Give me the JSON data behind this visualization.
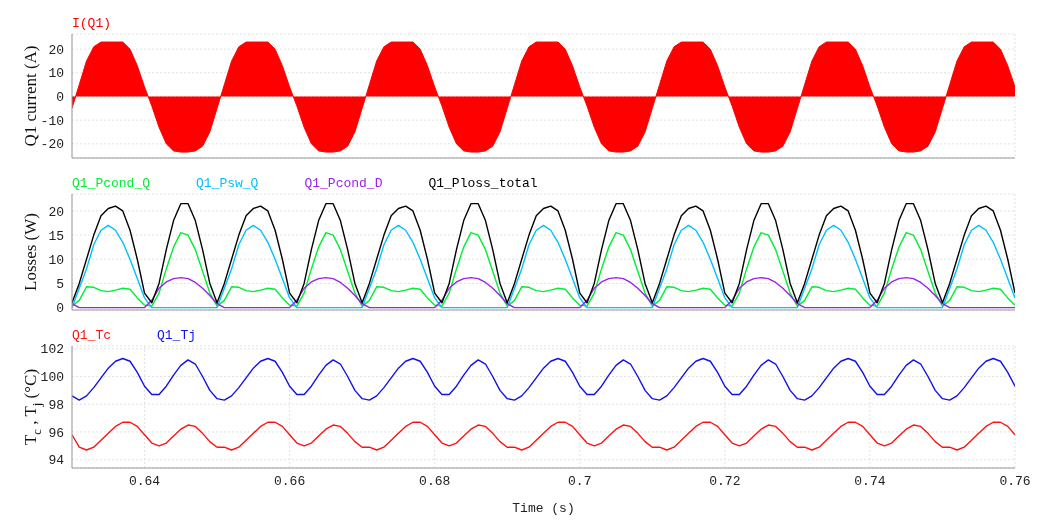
{
  "chart_data": [
    {
      "type": "area",
      "ylabel": "Q1 current (A)",
      "ylim": [
        -26,
        26.4
      ],
      "yticks": [
        -20,
        -10,
        0,
        10,
        20
      ],
      "xlim": [
        0.63,
        0.76
      ],
      "xticks": [
        0.64,
        0.66,
        0.68,
        0.7,
        0.72,
        0.74,
        0.76
      ],
      "tick_labels": "y",
      "grid": true,
      "legend": "top left",
      "x": [
        0.63,
        0.631,
        0.632,
        0.633,
        0.634,
        0.635,
        0.636,
        0.637,
        0.638,
        0.639,
        0.64,
        0.641,
        0.642,
        0.643,
        0.644,
        0.645,
        0.646,
        0.647,
        0.648,
        0.649,
        0.65,
        0.651,
        0.652,
        0.653,
        0.654,
        0.655,
        0.656,
        0.657,
        0.658,
        0.659,
        0.66,
        0.661,
        0.662,
        0.663,
        0.664,
        0.665,
        0.666,
        0.667,
        0.668,
        0.669,
        0.67,
        0.671,
        0.672,
        0.673,
        0.674,
        0.675,
        0.676,
        0.677,
        0.678,
        0.679,
        0.68,
        0.681,
        0.682,
        0.683,
        0.684,
        0.685,
        0.686,
        0.687,
        0.688,
        0.689,
        0.69,
        0.691,
        0.692,
        0.693,
        0.694,
        0.695,
        0.696,
        0.697,
        0.698,
        0.699,
        0.7,
        0.701,
        0.702,
        0.703,
        0.704,
        0.705,
        0.706,
        0.707,
        0.708,
        0.709,
        0.71,
        0.711,
        0.712,
        0.713,
        0.714,
        0.715,
        0.716,
        0.717,
        0.718,
        0.719,
        0.72,
        0.721,
        0.722,
        0.723,
        0.724,
        0.725,
        0.726,
        0.727,
        0.728,
        0.729,
        0.73,
        0.731,
        0.732,
        0.733,
        0.734,
        0.735,
        0.736,
        0.737,
        0.738,
        0.739,
        0.74,
        0.741,
        0.742,
        0.743,
        0.744,
        0.745,
        0.746,
        0.747,
        0.748,
        0.749,
        0.75,
        0.751,
        0.752,
        0.753,
        0.754,
        0.755,
        0.756,
        0.757,
        0.758,
        0.759,
        0.76
      ],
      "series": [
        {
          "name": "I(Q1)",
          "color": "#ff0000",
          "values": [
            -5,
            5,
            15,
            21,
            23,
            23,
            23,
            23,
            20,
            13,
            4,
            -4,
            -13,
            -20,
            -23,
            -23.5,
            -23.5,
            -23,
            -21,
            -15,
            -5,
            5,
            15,
            21,
            23,
            23,
            23,
            23,
            20,
            13,
            4,
            -4,
            -13,
            -20,
            -23,
            -23.5,
            -23.5,
            -23,
            -21,
            -15,
            -5,
            5,
            15,
            21,
            23,
            23,
            23,
            23,
            20,
            13,
            4,
            -4,
            -13,
            -20,
            -23,
            -23.5,
            -23.5,
            -23,
            -21,
            -15,
            -5,
            5,
            15,
            21,
            23,
            23,
            23,
            23,
            20,
            13,
            4,
            -4,
            -13,
            -20,
            -23,
            -23.5,
            -23.5,
            -23,
            -21,
            -15,
            -5,
            5,
            15,
            21,
            23,
            23,
            23,
            23,
            20,
            13,
            4,
            -4,
            -13,
            -20,
            -23,
            -23.5,
            -23.5,
            -23,
            -21,
            -15,
            -5,
            5,
            15,
            21,
            23,
            23,
            23,
            23,
            20,
            13,
            4,
            -4,
            -13,
            -20,
            -23,
            -23.5,
            -23.5,
            -23,
            -21,
            -15,
            -5,
            5,
            15,
            21,
            23,
            23,
            23,
            23,
            20,
            13,
            4
          ]
        }
      ]
    },
    {
      "type": "line",
      "ylabel": "Losses (W)",
      "ylim": [
        -0.5,
        23.5
      ],
      "yticks": [
        0,
        5,
        10,
        15,
        20
      ],
      "xlim": [
        0.63,
        0.76
      ],
      "xticks": [
        0.64,
        0.66,
        0.68,
        0.7,
        0.72,
        0.74,
        0.76
      ],
      "tick_labels": "y",
      "grid": true,
      "legend": "top left",
      "x": [
        0.63,
        0.631,
        0.632,
        0.633,
        0.634,
        0.635,
        0.636,
        0.637,
        0.638,
        0.639,
        0.64,
        0.641,
        0.642,
        0.643,
        0.644,
        0.645,
        0.646,
        0.647,
        0.648,
        0.649,
        0.65,
        0.651,
        0.652,
        0.653,
        0.654,
        0.655,
        0.656,
        0.657,
        0.658,
        0.659,
        0.66,
        0.661,
        0.662,
        0.663,
        0.664,
        0.665,
        0.666,
        0.667,
        0.668,
        0.669,
        0.67,
        0.671,
        0.672,
        0.673,
        0.674,
        0.675,
        0.676,
        0.677,
        0.678,
        0.679,
        0.68,
        0.681,
        0.682,
        0.683,
        0.684,
        0.685,
        0.686,
        0.687,
        0.688,
        0.689,
        0.69,
        0.691,
        0.692,
        0.693,
        0.694,
        0.695,
        0.696,
        0.697,
        0.698,
        0.699,
        0.7,
        0.701,
        0.702,
        0.703,
        0.704,
        0.705,
        0.706,
        0.707,
        0.708,
        0.709,
        0.71,
        0.711,
        0.712,
        0.713,
        0.714,
        0.715,
        0.716,
        0.717,
        0.718,
        0.719,
        0.72,
        0.721,
        0.722,
        0.723,
        0.724,
        0.725,
        0.726,
        0.727,
        0.728,
        0.729,
        0.73,
        0.731,
        0.732,
        0.733,
        0.734,
        0.735,
        0.736,
        0.737,
        0.738,
        0.739,
        0.74,
        0.741,
        0.742,
        0.743,
        0.744,
        0.745,
        0.746,
        0.747,
        0.748,
        0.749,
        0.75,
        0.751,
        0.752,
        0.753,
        0.754,
        0.755,
        0.756,
        0.757,
        0.758,
        0.759,
        0.76
      ],
      "series": [
        {
          "name": "Q1_Pcond_Q",
          "color": "#00ee33",
          "values": [
            0.3,
            1.5,
            4.3,
            4.2,
            3.5,
            3.3,
            3.6,
            4,
            3.8,
            2,
            0.5,
            0.3,
            3,
            8,
            12.5,
            15.5,
            15,
            12,
            7.5,
            3,
            0.3,
            1.5,
            4.3,
            4.2,
            3.5,
            3.3,
            3.6,
            4,
            3.8,
            2,
            0.5,
            0.3,
            3,
            8,
            12.5,
            15.5,
            15,
            12,
            7.5,
            3,
            0.3,
            1.5,
            4.3,
            4.2,
            3.5,
            3.3,
            3.6,
            4,
            3.8,
            2,
            0.5,
            0.3,
            3,
            8,
            12.5,
            15.5,
            15,
            12,
            7.5,
            3,
            0.3,
            1.5,
            4.3,
            4.2,
            3.5,
            3.3,
            3.6,
            4,
            3.8,
            2,
            0.5,
            0.3,
            3,
            8,
            12.5,
            15.5,
            15,
            12,
            7.5,
            3,
            0.3,
            1.5,
            4.3,
            4.2,
            3.5,
            3.3,
            3.6,
            4,
            3.8,
            2,
            0.5,
            0.3,
            3,
            8,
            12.5,
            15.5,
            15,
            12,
            7.5,
            3,
            0.3,
            1.5,
            4.3,
            4.2,
            3.5,
            3.3,
            3.6,
            4,
            3.8,
            2,
            0.5,
            0.3,
            3,
            8,
            12.5,
            15.5,
            15,
            12,
            7.5,
            3,
            0.3,
            1.5,
            4.3,
            4.2,
            3.5,
            3.3,
            3.6,
            4,
            3.8,
            2,
            0.5
          ]
        },
        {
          "name": "Q1_Psw_Q",
          "color": "#00bfff",
          "values": [
            0,
            4,
            8,
            13,
            16,
            17,
            16,
            13.5,
            10,
            6,
            2,
            0,
            0,
            0,
            0,
            0,
            0,
            0,
            0,
            0,
            0,
            4,
            8,
            13,
            16,
            17,
            16,
            13.5,
            10,
            6,
            2,
            0,
            0,
            0,
            0,
            0,
            0,
            0,
            0,
            0,
            0,
            4,
            8,
            13,
            16,
            17,
            16,
            13.5,
            10,
            6,
            2,
            0,
            0,
            0,
            0,
            0,
            0,
            0,
            0,
            0,
            0,
            4,
            8,
            13,
            16,
            17,
            16,
            13.5,
            10,
            6,
            2,
            0,
            0,
            0,
            0,
            0,
            0,
            0,
            0,
            0,
            0,
            4,
            8,
            13,
            16,
            17,
            16,
            13.5,
            10,
            6,
            2,
            0,
            0,
            0,
            0,
            0,
            0,
            0,
            0,
            0,
            0,
            4,
            8,
            13,
            16,
            17,
            16,
            13.5,
            10,
            6,
            2,
            0,
            0,
            0,
            0,
            0,
            0,
            0,
            0,
            0,
            0,
            4,
            8,
            13,
            16,
            17,
            16,
            13.5,
            10,
            6,
            2
          ]
        },
        {
          "name": "Q1_Pcond_D",
          "color": "#9922ee",
          "values": [
            0.8,
            0,
            0,
            0,
            0,
            0,
            0,
            0,
            0,
            0,
            0,
            1.5,
            4,
            5.3,
            6,
            6.2,
            6,
            5.2,
            4,
            2.5,
            0.8,
            0,
            0,
            0,
            0,
            0,
            0,
            0,
            0,
            0,
            0,
            1.5,
            4,
            5.3,
            6,
            6.2,
            6,
            5.2,
            4,
            2.5,
            0.8,
            0,
            0,
            0,
            0,
            0,
            0,
            0,
            0,
            0,
            0,
            1.5,
            4,
            5.3,
            6,
            6.2,
            6,
            5.2,
            4,
            2.5,
            0.8,
            0,
            0,
            0,
            0,
            0,
            0,
            0,
            0,
            0,
            0,
            1.5,
            4,
            5.3,
            6,
            6.2,
            6,
            5.2,
            4,
            2.5,
            0.8,
            0,
            0,
            0,
            0,
            0,
            0,
            0,
            0,
            0,
            0,
            1.5,
            4,
            5.3,
            6,
            6.2,
            6,
            5.2,
            4,
            2.5,
            0.8,
            0,
            0,
            0,
            0,
            0,
            0,
            0,
            0,
            0,
            0,
            1.5,
            4,
            5.3,
            6,
            6.2,
            6,
            5.2,
            4,
            2.5,
            0.8,
            0,
            0,
            0,
            0,
            0,
            0,
            0,
            0,
            0,
            0
          ]
        },
        {
          "name": "Q1_Ploss_total",
          "color": "#000000",
          "values": [
            1,
            5,
            10,
            15,
            19,
            20.5,
            21,
            20,
            16,
            10,
            3,
            1,
            5,
            12,
            18,
            21.5,
            21.5,
            18,
            12,
            5,
            1,
            5,
            10,
            15,
            19,
            20.5,
            21,
            20,
            16,
            10,
            3,
            1,
            5,
            12,
            18,
            21.5,
            21.5,
            18,
            12,
            5,
            1,
            5,
            10,
            15,
            19,
            20.5,
            21,
            20,
            16,
            10,
            3,
            1,
            5,
            12,
            18,
            21.5,
            21.5,
            18,
            12,
            5,
            1,
            5,
            10,
            15,
            19,
            20.5,
            21,
            20,
            16,
            10,
            3,
            1,
            5,
            12,
            18,
            21.5,
            21.5,
            18,
            12,
            5,
            1,
            5,
            10,
            15,
            19,
            20.5,
            21,
            20,
            16,
            10,
            3,
            1,
            5,
            12,
            18,
            21.5,
            21.5,
            18,
            12,
            5,
            1,
            5,
            10,
            15,
            19,
            20.5,
            21,
            20,
            16,
            10,
            3,
            1,
            5,
            12,
            18,
            21.5,
            21.5,
            18,
            12,
            5,
            1,
            5,
            10,
            15,
            19,
            20.5,
            21,
            20,
            16,
            10,
            3
          ]
        }
      ]
    },
    {
      "type": "line",
      "ylabel": "T$_{c}$ , T$_{j}$ (°C)",
      "xlabel": "Time (s)",
      "ylim": [
        93.4,
        102.2
      ],
      "yticks": [
        94,
        96,
        98,
        100,
        102
      ],
      "xlim": [
        0.63,
        0.76
      ],
      "xticks": [
        0.64,
        0.66,
        0.68,
        0.7,
        0.72,
        0.74,
        0.76
      ],
      "grid": true,
      "legend": "top left",
      "x": [
        0.63,
        0.631,
        0.632,
        0.633,
        0.634,
        0.635,
        0.636,
        0.637,
        0.638,
        0.639,
        0.64,
        0.641,
        0.642,
        0.643,
        0.644,
        0.645,
        0.646,
        0.647,
        0.648,
        0.649,
        0.65,
        0.651,
        0.652,
        0.653,
        0.654,
        0.655,
        0.656,
        0.657,
        0.658,
        0.659,
        0.66,
        0.661,
        0.662,
        0.663,
        0.664,
        0.665,
        0.666,
        0.667,
        0.668,
        0.669,
        0.67,
        0.671,
        0.672,
        0.673,
        0.674,
        0.675,
        0.676,
        0.677,
        0.678,
        0.679,
        0.68,
        0.681,
        0.682,
        0.683,
        0.684,
        0.685,
        0.686,
        0.687,
        0.688,
        0.689,
        0.69,
        0.691,
        0.692,
        0.693,
        0.694,
        0.695,
        0.696,
        0.697,
        0.698,
        0.699,
        0.7,
        0.701,
        0.702,
        0.703,
        0.704,
        0.705,
        0.706,
        0.707,
        0.708,
        0.709,
        0.71,
        0.711,
        0.712,
        0.713,
        0.714,
        0.715,
        0.716,
        0.717,
        0.718,
        0.719,
        0.72,
        0.721,
        0.722,
        0.723,
        0.724,
        0.725,
        0.726,
        0.727,
        0.728,
        0.729,
        0.73,
        0.731,
        0.732,
        0.733,
        0.734,
        0.735,
        0.736,
        0.737,
        0.738,
        0.739,
        0.74,
        0.741,
        0.742,
        0.743,
        0.744,
        0.745,
        0.746,
        0.747,
        0.748,
        0.749,
        0.75,
        0.751,
        0.752,
        0.753,
        0.754,
        0.755,
        0.756,
        0.757,
        0.758,
        0.759,
        0.76
      ],
      "series": [
        {
          "name": "Q1_Tc",
          "color": "#ff1111",
          "values": [
            95.8,
            94.9,
            94.7,
            94.9,
            95.4,
            95.9,
            96.4,
            96.7,
            96.7,
            96.4,
            95.8,
            95.2,
            95,
            95.2,
            95.7,
            96.2,
            96.5,
            96.4,
            95.9,
            95.3,
            94.9,
            94.9,
            94.7,
            94.9,
            95.4,
            95.9,
            96.4,
            96.7,
            96.7,
            96.4,
            95.8,
            95.2,
            95,
            95.2,
            95.7,
            96.2,
            96.5,
            96.4,
            95.9,
            95.3,
            94.9,
            94.9,
            94.7,
            94.9,
            95.4,
            95.9,
            96.4,
            96.7,
            96.7,
            96.4,
            95.8,
            95.2,
            95,
            95.2,
            95.7,
            96.2,
            96.5,
            96.4,
            95.9,
            95.3,
            94.9,
            94.9,
            94.7,
            94.9,
            95.4,
            95.9,
            96.4,
            96.7,
            96.7,
            96.4,
            95.8,
            95.2,
            95,
            95.2,
            95.7,
            96.2,
            96.5,
            96.4,
            95.9,
            95.3,
            94.9,
            94.9,
            94.7,
            94.9,
            95.4,
            95.9,
            96.4,
            96.7,
            96.7,
            96.4,
            95.8,
            95.2,
            95,
            95.2,
            95.7,
            96.2,
            96.5,
            96.4,
            95.9,
            95.3,
            94.9,
            94.9,
            94.7,
            94.9,
            95.4,
            95.9,
            96.4,
            96.7,
            96.7,
            96.4,
            95.8,
            95.2,
            95,
            95.2,
            95.7,
            96.2,
            96.5,
            96.4,
            95.9,
            95.3,
            94.9,
            94.9,
            94.7,
            94.9,
            95.4,
            95.9,
            96.4,
            96.7,
            96.7,
            96.4,
            95.8
          ]
        },
        {
          "name": "Q1_Tj",
          "color": "#1111ee",
          "values": [
            98.6,
            98.3,
            98.6,
            99.2,
            99.9,
            100.6,
            101.1,
            101.3,
            101.1,
            100.3,
            99.3,
            98.7,
            98.7,
            99.3,
            100.1,
            100.8,
            101.2,
            100.9,
            100,
            99,
            98.4,
            98.3,
            98.6,
            99.2,
            99.9,
            100.6,
            101.1,
            101.3,
            101.1,
            100.3,
            99.3,
            98.7,
            98.7,
            99.3,
            100.1,
            100.8,
            101.2,
            100.9,
            100,
            99,
            98.4,
            98.3,
            98.6,
            99.2,
            99.9,
            100.6,
            101.1,
            101.3,
            101.1,
            100.3,
            99.3,
            98.7,
            98.7,
            99.3,
            100.1,
            100.8,
            101.2,
            100.9,
            100,
            99,
            98.4,
            98.3,
            98.6,
            99.2,
            99.9,
            100.6,
            101.1,
            101.3,
            101.1,
            100.3,
            99.3,
            98.7,
            98.7,
            99.3,
            100.1,
            100.8,
            101.2,
            100.9,
            100,
            99,
            98.4,
            98.3,
            98.6,
            99.2,
            99.9,
            100.6,
            101.1,
            101.3,
            101.1,
            100.3,
            99.3,
            98.7,
            98.7,
            99.3,
            100.1,
            100.8,
            101.2,
            100.9,
            100,
            99,
            98.4,
            98.3,
            98.6,
            99.2,
            99.9,
            100.6,
            101.1,
            101.3,
            101.1,
            100.3,
            99.3,
            98.7,
            98.7,
            99.3,
            100.1,
            100.8,
            101.2,
            100.9,
            100,
            99,
            98.4,
            98.3,
            98.6,
            99.2,
            99.9,
            100.6,
            101.1,
            101.3,
            101.1,
            100.3,
            99.3
          ]
        }
      ]
    }
  ]
}
